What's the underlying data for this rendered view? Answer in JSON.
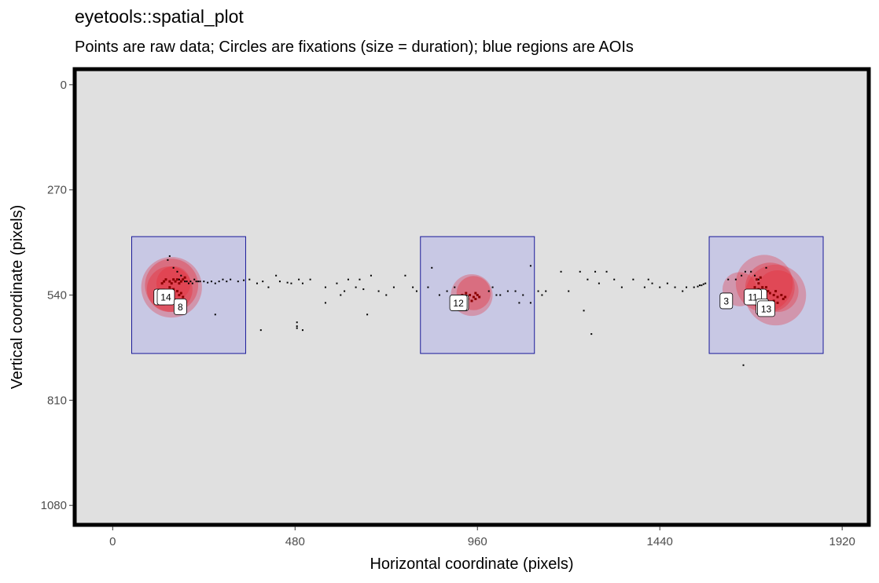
{
  "title": "eyetools::spatial_plot",
  "subtitle": "Points are raw data; Circles are fixations (size = duration); blue regions are AOIs",
  "colors": {
    "panel_background": "#e0e0e0",
    "panel_border": "#000000",
    "aoi_fill": "#c8c8e4",
    "aoi_stroke": "#1a1a9a",
    "fixation_fill": "#e8262e",
    "raw_point": "#000000",
    "raw_point_in_fixation": "#8b0000"
  },
  "chart_data": {
    "type": "scatter",
    "title": "eyetools::spatial_plot",
    "subtitle": "Points are raw data; Circles are fixations (size = duration); blue regions are AOIs",
    "xlabel": "Horizontal coordinate (pixels)",
    "ylabel": "Vertical coordinate (pixels)",
    "xlim": [
      -100,
      1990
    ],
    "ylim": [
      1130,
      -40
    ],
    "y_reversed": true,
    "grid": false,
    "x_ticks": [
      0,
      480,
      960,
      1440,
      1920
    ],
    "y_ticks": [
      0,
      270,
      540,
      810,
      1080
    ],
    "aois": [
      {
        "x": 50,
        "y": 390,
        "w": 300,
        "h": 300
      },
      {
        "x": 810,
        "y": 390,
        "w": 300,
        "h": 300
      },
      {
        "x": 1570,
        "y": 390,
        "w": 300,
        "h": 300
      }
    ],
    "fixations": [
      {
        "x": 155,
        "y": 520,
        "r": 80,
        "alpha": 0.3
      },
      {
        "x": 155,
        "y": 515,
        "r": 70,
        "alpha": 0.35
      },
      {
        "x": 150,
        "y": 525,
        "r": 60,
        "alpha": 0.35
      },
      {
        "x": 160,
        "y": 510,
        "r": 45,
        "alpha": 0.3
      },
      {
        "x": 945,
        "y": 540,
        "r": 55,
        "alpha": 0.3
      },
      {
        "x": 950,
        "y": 535,
        "r": 45,
        "alpha": 0.35
      },
      {
        "x": 1650,
        "y": 525,
        "r": 45,
        "alpha": 0.3
      },
      {
        "x": 1715,
        "y": 510,
        "r": 75,
        "alpha": 0.3
      },
      {
        "x": 1745,
        "y": 540,
        "r": 80,
        "alpha": 0.3
      },
      {
        "x": 1730,
        "y": 520,
        "r": 65,
        "alpha": 0.35
      },
      {
        "x": 1750,
        "y": 530,
        "r": 55,
        "alpha": 0.3
      }
    ],
    "fixation_labels": [
      {
        "x": 125,
        "y": 545,
        "label": ""
      },
      {
        "x": 140,
        "y": 545,
        "label": "14"
      },
      {
        "x": 178,
        "y": 570,
        "label": "8"
      },
      {
        "x": 920,
        "y": 560,
        "label": ""
      },
      {
        "x": 910,
        "y": 560,
        "label": "12"
      },
      {
        "x": 1615,
        "y": 555,
        "label": "3"
      },
      {
        "x": 1705,
        "y": 545,
        "label": ""
      },
      {
        "x": 1685,
        "y": 545,
        "label": "11"
      },
      {
        "x": 1710,
        "y": 570,
        "label": ""
      },
      {
        "x": 1720,
        "y": 575,
        "label": "13"
      }
    ],
    "raw_points": [
      [
        150,
        440
      ],
      [
        145,
        450
      ],
      [
        160,
        470
      ],
      [
        170,
        480
      ],
      [
        180,
        490
      ],
      [
        175,
        500
      ],
      [
        185,
        500
      ],
      [
        190,
        505
      ],
      [
        195,
        505
      ],
      [
        200,
        510
      ],
      [
        205,
        505
      ],
      [
        210,
        510
      ],
      [
        215,
        500
      ],
      [
        220,
        505
      ],
      [
        225,
        505
      ],
      [
        230,
        505
      ],
      [
        240,
        505
      ],
      [
        250,
        508
      ],
      [
        260,
        505
      ],
      [
        270,
        510
      ],
      [
        280,
        505
      ],
      [
        290,
        500
      ],
      [
        300,
        505
      ],
      [
        310,
        500
      ],
      [
        330,
        505
      ],
      [
        345,
        502
      ],
      [
        360,
        500
      ],
      [
        380,
        510
      ],
      [
        395,
        505
      ],
      [
        410,
        520
      ],
      [
        430,
        490
      ],
      [
        440,
        505
      ],
      [
        460,
        508
      ],
      [
        470,
        510
      ],
      [
        490,
        500
      ],
      [
        500,
        510
      ],
      [
        520,
        500
      ],
      [
        560,
        520
      ],
      [
        590,
        510
      ],
      [
        600,
        540
      ],
      [
        610,
        530
      ],
      [
        620,
        500
      ],
      [
        640,
        520
      ],
      [
        650,
        500
      ],
      [
        660,
        525
      ],
      [
        680,
        490
      ],
      [
        700,
        530
      ],
      [
        720,
        540
      ],
      [
        740,
        520
      ],
      [
        770,
        490
      ],
      [
        790,
        520
      ],
      [
        800,
        530
      ],
      [
        830,
        520
      ],
      [
        840,
        470
      ],
      [
        860,
        540
      ],
      [
        880,
        530
      ],
      [
        900,
        520
      ],
      [
        990,
        530
      ],
      [
        1000,
        520
      ],
      [
        1010,
        540
      ],
      [
        1020,
        540
      ],
      [
        1040,
        530
      ],
      [
        1060,
        530
      ],
      [
        1080,
        540
      ],
      [
        1100,
        560
      ],
      [
        1120,
        530
      ],
      [
        1130,
        540
      ],
      [
        1140,
        530
      ],
      [
        1180,
        480
      ],
      [
        1200,
        530
      ],
      [
        1230,
        480
      ],
      [
        1250,
        500
      ],
      [
        1270,
        480
      ],
      [
        1280,
        510
      ],
      [
        1300,
        480
      ],
      [
        1320,
        500
      ],
      [
        1340,
        520
      ],
      [
        1370,
        500
      ],
      [
        1400,
        520
      ],
      [
        1410,
        500
      ],
      [
        1420,
        510
      ],
      [
        1440,
        520
      ],
      [
        1460,
        510
      ],
      [
        1480,
        520
      ],
      [
        1500,
        530
      ],
      [
        1510,
        520
      ],
      [
        1530,
        520
      ],
      [
        1540,
        518
      ],
      [
        1545,
        515
      ],
      [
        1550,
        515
      ],
      [
        1555,
        512
      ],
      [
        1560,
        510
      ],
      [
        1620,
        500
      ],
      [
        1640,
        500
      ],
      [
        1655,
        490
      ],
      [
        1665,
        480
      ],
      [
        1680,
        480
      ],
      [
        1690,
        490
      ],
      [
        1700,
        500
      ],
      [
        1720,
        470
      ],
      [
        1660,
        720
      ],
      [
        485,
        610
      ],
      [
        485,
        620
      ],
      [
        500,
        630
      ],
      [
        485,
        625
      ],
      [
        670,
        590
      ],
      [
        560,
        560
      ],
      [
        1240,
        580
      ],
      [
        1260,
        640
      ],
      [
        270,
        590
      ],
      [
        390,
        630
      ],
      [
        1070,
        560
      ],
      [
        1100,
        465
      ]
    ],
    "fixation_raw_points": [
      [
        130,
        510
      ],
      [
        135,
        505
      ],
      [
        140,
        500
      ],
      [
        150,
        505
      ],
      [
        155,
        510
      ],
      [
        160,
        500
      ],
      [
        165,
        505
      ],
      [
        170,
        500
      ],
      [
        175,
        510
      ],
      [
        180,
        505
      ],
      [
        185,
        500
      ],
      [
        190,
        495
      ],
      [
        150,
        520
      ],
      [
        160,
        525
      ],
      [
        170,
        530
      ],
      [
        175,
        540
      ],
      [
        180,
        535
      ],
      [
        185,
        545
      ],
      [
        170,
        555
      ],
      [
        165,
        560
      ],
      [
        180,
        560
      ],
      [
        920,
        540
      ],
      [
        930,
        535
      ],
      [
        940,
        540
      ],
      [
        950,
        545
      ],
      [
        955,
        535
      ],
      [
        960,
        540
      ],
      [
        965,
        545
      ],
      [
        935,
        550
      ],
      [
        945,
        555
      ],
      [
        955,
        550
      ],
      [
        1690,
        520
      ],
      [
        1700,
        525
      ],
      [
        1710,
        520
      ],
      [
        1715,
        530
      ],
      [
        1720,
        520
      ],
      [
        1725,
        530
      ],
      [
        1730,
        535
      ],
      [
        1740,
        540
      ],
      [
        1745,
        530
      ],
      [
        1750,
        545
      ],
      [
        1760,
        540
      ],
      [
        1765,
        550
      ],
      [
        1770,
        545
      ],
      [
        1750,
        560
      ],
      [
        1740,
        555
      ],
      [
        1700,
        510
      ],
      [
        1695,
        500
      ],
      [
        1705,
        495
      ]
    ]
  }
}
